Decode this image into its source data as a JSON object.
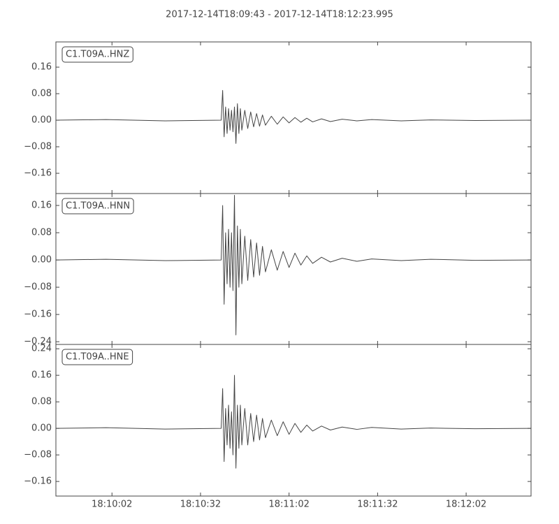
{
  "title": "2017-12-14T18:09:43  -  2017-12-14T18:12:23.995",
  "chart_data": [
    {
      "type": "line",
      "xlim": [
        65383,
        65543.995
      ],
      "ylim": [
        -0.221,
        0.236
      ],
      "yticks": [
        {
          "value": -0.16,
          "label": "−0.16"
        },
        {
          "value": -0.08,
          "label": "−0.08"
        },
        {
          "value": 0,
          "label": "0.00"
        },
        {
          "value": 0.08,
          "label": "0.08"
        },
        {
          "value": 0.16,
          "label": "0.16"
        }
      ],
      "x": [
        65383,
        65400,
        65420,
        65439,
        65439.5,
        65440,
        65440.5,
        65441,
        65441.5,
        65442,
        65442.5,
        65443,
        65443.5,
        65444,
        65444.5,
        65445,
        65445.5,
        65446,
        65447,
        65448,
        65449,
        65450,
        65451,
        65452,
        65453,
        65454,
        65456,
        65458,
        65460,
        65462,
        65464,
        65466,
        65468,
        65470,
        65473,
        65476,
        65480,
        65485,
        65490,
        65500,
        65510,
        65525,
        65543.995
      ],
      "series": [
        {
          "name": "C1.T09A..HNZ",
          "color": "#444444",
          "values": [
            0,
            0.002,
            -0.002,
            0,
            0.09,
            -0.05,
            0.04,
            -0.04,
            0.035,
            -0.03,
            0.03,
            -0.035,
            0.04,
            -0.07,
            0.05,
            -0.04,
            0.035,
            -0.03,
            0.03,
            -0.025,
            0.025,
            -0.02,
            0.02,
            -0.018,
            0.016,
            -0.015,
            0.012,
            -0.012,
            0.01,
            -0.008,
            0.008,
            -0.006,
            0.006,
            -0.005,
            0.004,
            -0.004,
            0.003,
            -0.002,
            0.002,
            -0.002,
            0.001,
            -0.001,
            0
          ]
        }
      ]
    },
    {
      "type": "line",
      "xlim": [
        65383,
        65543.995
      ],
      "ylim": [
        -0.248,
        0.195
      ],
      "yticks": [
        {
          "value": -0.24,
          "label": "−0.24"
        },
        {
          "value": -0.16,
          "label": "−0.16"
        },
        {
          "value": -0.08,
          "label": "−0.08"
        },
        {
          "value": 0,
          "label": "0.00"
        },
        {
          "value": 0.08,
          "label": "0.08"
        },
        {
          "value": 0.16,
          "label": "0.16"
        }
      ],
      "x": [
        65383,
        65400,
        65420,
        65439,
        65439.5,
        65440,
        65440.5,
        65441,
        65441.5,
        65442,
        65442.5,
        65443,
        65443.5,
        65444,
        65444.5,
        65445,
        65445.5,
        65446,
        65447,
        65448,
        65449,
        65450,
        65451,
        65452,
        65453,
        65454,
        65456,
        65458,
        65460,
        65462,
        65464,
        65466,
        65468,
        65470,
        65473,
        65476,
        65480,
        65485,
        65490,
        65500,
        65510,
        65525,
        65543.995
      ],
      "series": [
        {
          "name": "C1.T09A..HNN",
          "color": "#444444",
          "values": [
            0,
            0.002,
            -0.002,
            0,
            0.16,
            -0.13,
            0.08,
            -0.07,
            0.09,
            -0.08,
            0.08,
            -0.09,
            0.19,
            -0.22,
            0.1,
            -0.08,
            0.09,
            -0.07,
            0.07,
            -0.06,
            0.06,
            -0.05,
            0.05,
            -0.045,
            0.04,
            -0.035,
            0.03,
            -0.03,
            0.025,
            -0.022,
            0.02,
            -0.015,
            0.012,
            -0.01,
            0.008,
            -0.006,
            0.005,
            -0.004,
            0.003,
            -0.002,
            0.002,
            -0.001,
            0
          ]
        }
      ]
    },
    {
      "type": "line",
      "xlim": [
        65383,
        65543.995
      ],
      "ylim": [
        -0.204,
        0.253
      ],
      "yticks": [
        {
          "value": -0.16,
          "label": "−0.16"
        },
        {
          "value": -0.08,
          "label": "−0.08"
        },
        {
          "value": 0,
          "label": "0.00"
        },
        {
          "value": 0.08,
          "label": "0.08"
        },
        {
          "value": 0.16,
          "label": "0.16"
        },
        {
          "value": 0.24,
          "label": "0.24"
        }
      ],
      "xticks": [
        {
          "value": 65402,
          "label": "18:10:02"
        },
        {
          "value": 65432,
          "label": "18:10:32"
        },
        {
          "value": 65462,
          "label": "18:11:02"
        },
        {
          "value": 65492,
          "label": "18:11:32"
        },
        {
          "value": 65522,
          "label": "18:12:02"
        }
      ],
      "x": [
        65383,
        65400,
        65420,
        65439,
        65439.5,
        65440,
        65440.5,
        65441,
        65441.5,
        65442,
        65442.5,
        65443,
        65443.5,
        65444,
        65444.5,
        65445,
        65445.5,
        65446,
        65447,
        65448,
        65449,
        65450,
        65451,
        65452,
        65453,
        65454,
        65456,
        65458,
        65460,
        65462,
        65464,
        65466,
        65468,
        65470,
        65473,
        65476,
        65480,
        65485,
        65490,
        65500,
        65510,
        65525,
        65543.995
      ],
      "series": [
        {
          "name": "C1.T09A..HNE",
          "color": "#444444",
          "values": [
            0,
            0.002,
            -0.002,
            0,
            0.12,
            -0.1,
            0.06,
            -0.05,
            0.07,
            -0.06,
            0.05,
            -0.08,
            0.16,
            -0.12,
            0.07,
            -0.06,
            0.07,
            -0.05,
            0.06,
            -0.05,
            0.045,
            -0.04,
            0.04,
            -0.035,
            0.03,
            -0.028,
            0.025,
            -0.022,
            0.02,
            -0.018,
            0.015,
            -0.012,
            0.01,
            -0.008,
            0.007,
            -0.005,
            0.004,
            -0.003,
            0.003,
            -0.002,
            0.001,
            -0.001,
            0
          ]
        }
      ]
    }
  ]
}
